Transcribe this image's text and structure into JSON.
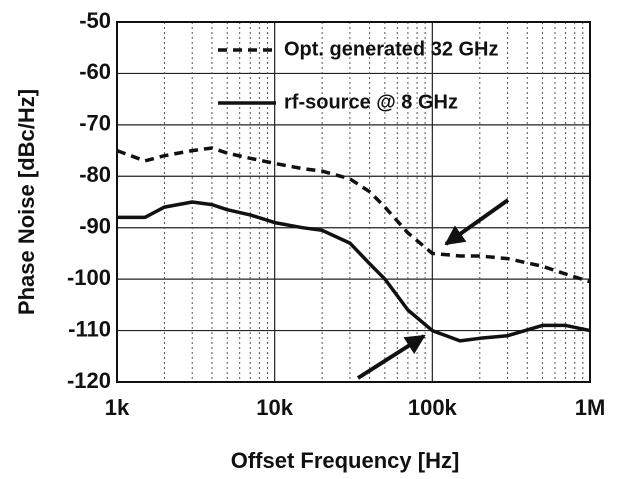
{
  "chart_data": {
    "type": "line",
    "x_label": "Offset Frequency [Hz]",
    "y_label": "Phase Noise [dBc/Hz]",
    "x": [
      1000,
      1500,
      2000,
      3000,
      4000,
      5000,
      7000,
      10000,
      15000,
      20000,
      30000,
      40000,
      50000,
      70000,
      100000,
      150000,
      200000,
      300000,
      500000,
      700000,
      1000000
    ],
    "series": [
      {
        "name": "Opt. generated 32 GHz",
        "color": "#111111",
        "dash": "dashed",
        "values": [
          -75,
          -77,
          -76,
          -75,
          -74.5,
          -75.5,
          -76.5,
          -77.5,
          -78.5,
          -79,
          -80.5,
          -83,
          -86,
          -91,
          -95,
          -95.5,
          -95.5,
          -96,
          -97.5,
          -99,
          -100.5
        ]
      },
      {
        "name": "rf-source @ 8 GHz",
        "color": "#111111",
        "dash": "solid",
        "values": [
          -88,
          -88,
          -86,
          -85,
          -85.5,
          -86.5,
          -87.5,
          -89,
          -90,
          -90.5,
          -93,
          -97,
          -100,
          -106,
          -110,
          -112,
          -111.5,
          -111,
          -109,
          -109,
          -110
        ]
      }
    ],
    "xscale": "log",
    "xlim": [
      1000,
      1000000
    ],
    "xticks": [
      {
        "value": 1000,
        "label": "1k"
      },
      {
        "value": 10000,
        "label": "10k"
      },
      {
        "value": 100000,
        "label": "100k"
      },
      {
        "value": 1000000,
        "label": "1M"
      }
    ],
    "ylim": [
      -120,
      -50
    ],
    "yticks": [
      -120,
      -110,
      -100,
      -90,
      -80,
      -70,
      -60,
      -50
    ],
    "grid": true,
    "legend": "upper right"
  }
}
